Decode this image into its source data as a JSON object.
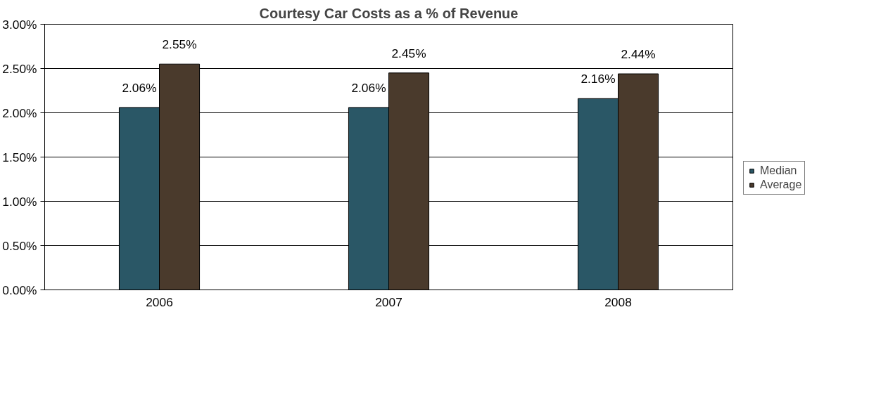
{
  "chart_data": {
    "type": "bar",
    "title": "Courtesy Car Costs as a % of Revenue",
    "categories": [
      "2006",
      "2007",
      "2008"
    ],
    "series": [
      {
        "name": "Median",
        "color": "#2a5766",
        "values": [
          2.06,
          2.06,
          2.16
        ],
        "value_labels": [
          "2.06%",
          "2.06%",
          "2.16%"
        ]
      },
      {
        "name": "Average",
        "color": "#4a3a2c",
        "values": [
          2.55,
          2.45,
          2.44
        ],
        "value_labels": [
          "2.55%",
          "2.45%",
          "2.44%"
        ]
      }
    ],
    "ylim": [
      0,
      3
    ],
    "yticks": [
      {
        "value": 0,
        "label": "0.00%"
      },
      {
        "value": 0.5,
        "label": "0.50%"
      },
      {
        "value": 1,
        "label": "1.00%"
      },
      {
        "value": 1.5,
        "label": "1.50%"
      },
      {
        "value": 2,
        "label": "2.00%"
      },
      {
        "value": 2.5,
        "label": "2.50%"
      },
      {
        "value": 3,
        "label": "3.00%"
      }
    ],
    "grid": "y",
    "legend": "right"
  }
}
